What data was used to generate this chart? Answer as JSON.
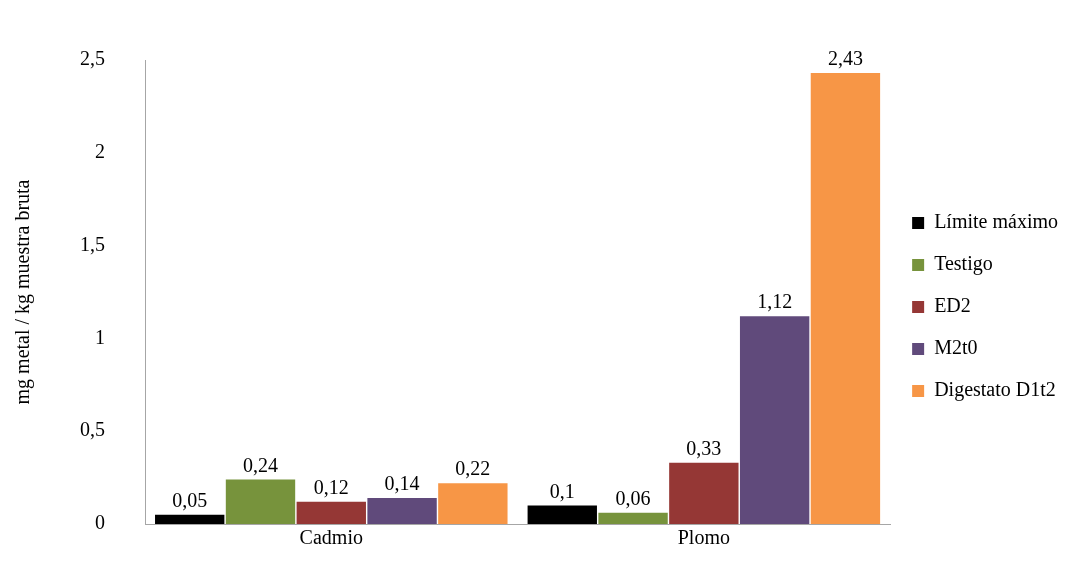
{
  "chart_data": {
    "type": "bar",
    "ylabel": "mg metal / kg muestra bruta",
    "categories": [
      "Cadmio",
      "Plomo"
    ],
    "series": [
      {
        "name": "Límite máximo",
        "color": "#000000",
        "values": [
          0.05,
          0.1
        ],
        "value_labels": [
          "0,05",
          "0,1"
        ]
      },
      {
        "name": "Testigo",
        "color": "#77933c",
        "values": [
          0.24,
          0.06
        ],
        "value_labels": [
          "0,24",
          "0,06"
        ]
      },
      {
        "name": "ED2",
        "color": "#953735",
        "values": [
          0.12,
          0.33
        ],
        "value_labels": [
          "0,12",
          "0,33"
        ]
      },
      {
        "name": "M2t0",
        "color": "#604a7b",
        "values": [
          0.14,
          1.12
        ],
        "value_labels": [
          "0,14",
          "1,12"
        ]
      },
      {
        "name": "Digestato D1t2",
        "color": "#f79646",
        "values": [
          0.22,
          2.43
        ],
        "value_labels": [
          "0,22",
          "2,43"
        ]
      }
    ],
    "ylim": [
      0,
      2.5
    ],
    "yticks": [
      0,
      {
        "value": 0.5,
        "label": "0,5"
      },
      1,
      {
        "value": 1.5,
        "label": "1,5"
      },
      2,
      {
        "value": 2.5,
        "label": "2,5"
      }
    ],
    "grid": false,
    "legend": "right"
  }
}
